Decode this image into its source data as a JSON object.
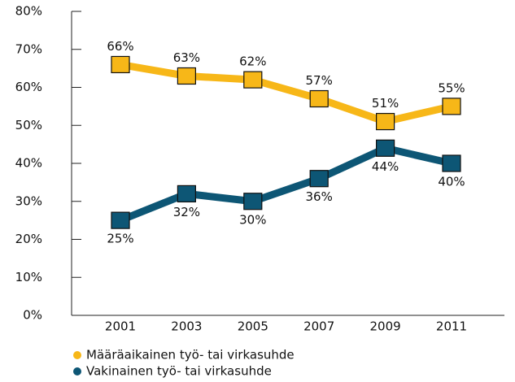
{
  "chart_data": {
    "type": "line",
    "categories": [
      "2001",
      "2003",
      "2005",
      "2007",
      "2009",
      "2011"
    ],
    "series": [
      {
        "name": "Määräaikainen työ- tai virkasuhde",
        "color": "#f7b718",
        "values": [
          66,
          63,
          62,
          57,
          51,
          55
        ],
        "value_labels": [
          "66%",
          "63%",
          "62%",
          "57%",
          "51%",
          "55%"
        ]
      },
      {
        "name": "Vakinainen työ- tai virkasuhde",
        "color": "#0d5675",
        "values": [
          25,
          32,
          30,
          36,
          44,
          40
        ],
        "value_labels": [
          "25%",
          "32%",
          "30%",
          "36%",
          "44%",
          "40%"
        ]
      }
    ],
    "ylim": [
      0,
      80
    ],
    "yticks": [
      {
        "value": 0,
        "label": "0%"
      },
      {
        "value": 10,
        "label": "10%"
      },
      {
        "value": 20,
        "label": "20%"
      },
      {
        "value": 30,
        "label": "30%"
      },
      {
        "value": 40,
        "label": "40%"
      },
      {
        "value": 50,
        "label": "50%"
      },
      {
        "value": 60,
        "label": "60%"
      },
      {
        "value": 70,
        "label": "70%"
      },
      {
        "value": 80,
        "label": "80%"
      }
    ],
    "legend": "bottom-left"
  }
}
